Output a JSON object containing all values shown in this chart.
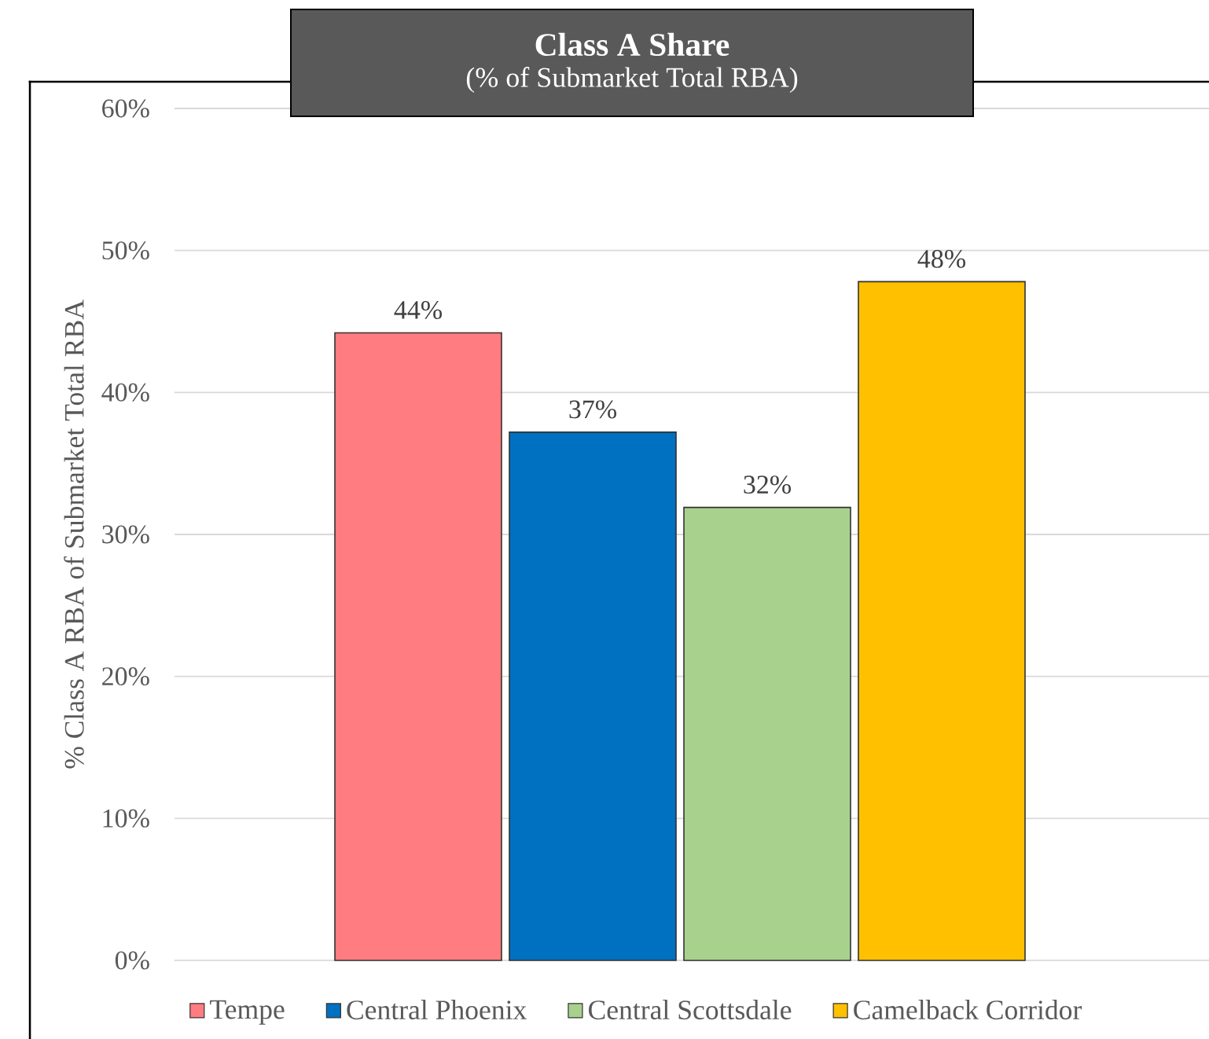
{
  "chart_data": {
    "type": "bar",
    "title": "Class A Share",
    "subtitle": "(% of Submarket Total RBA)",
    "ylabel": "% Class A RBA of Submarket Total RBA",
    "categories": [
      null
    ],
    "series": [
      {
        "name": "Tempe",
        "color": "#ff7c80",
        "values": [
          44.2
        ],
        "value_labels": [
          "44%"
        ]
      },
      {
        "name": "Central Phoenix",
        "color": "#0070c0",
        "values": [
          37.2
        ],
        "value_labels": [
          "37%"
        ]
      },
      {
        "name": "Central Scottsdale",
        "color": "#a9d18e",
        "values": [
          31.9
        ],
        "value_labels": [
          "32%"
        ]
      },
      {
        "name": "Camelback Corridor",
        "color": "#ffc000",
        "values": [
          47.8
        ],
        "value_labels": [
          "48%"
        ]
      }
    ],
    "ylim": [
      0,
      60
    ],
    "yticks": [
      {
        "value": 0,
        "label": "0%"
      },
      {
        "value": 10,
        "label": "10%"
      },
      {
        "value": 20,
        "label": "20%"
      },
      {
        "value": 30,
        "label": "30%"
      },
      {
        "value": 40,
        "label": "40%"
      },
      {
        "value": 50,
        "label": "50%"
      },
      {
        "value": 60,
        "label": "60%"
      }
    ],
    "grid": "y",
    "legend": "bottom"
  }
}
